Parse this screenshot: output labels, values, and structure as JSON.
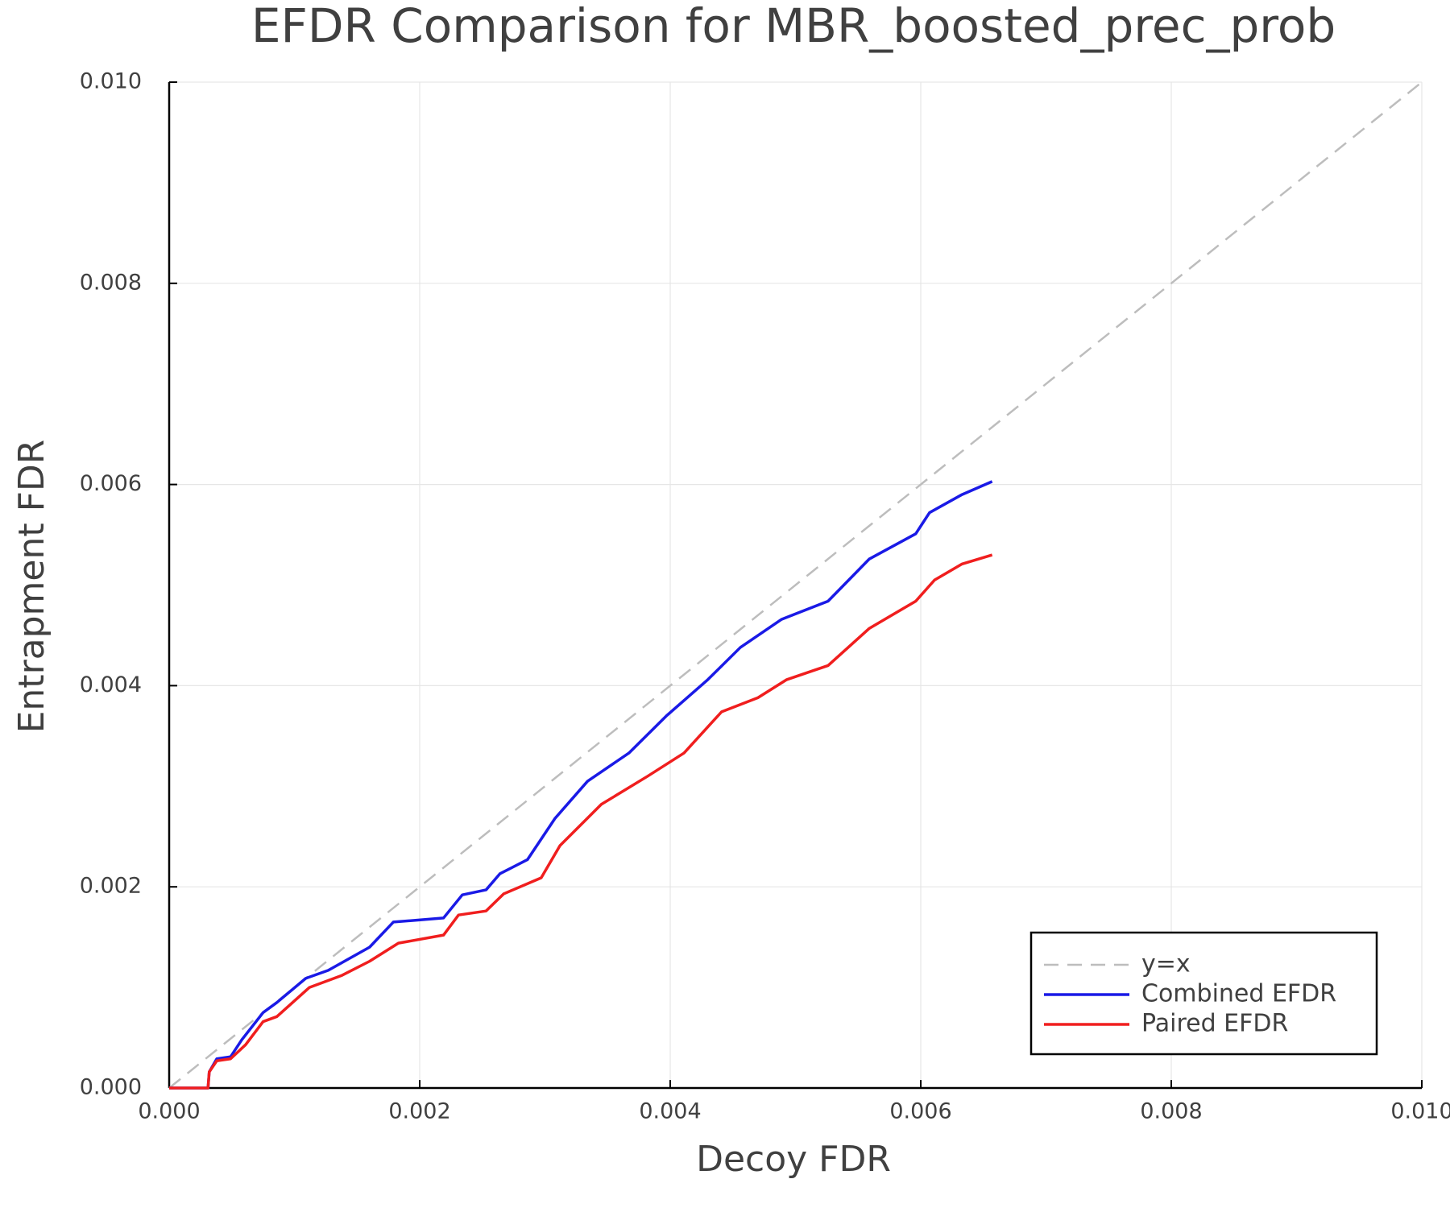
{
  "chart_data": {
    "type": "line",
    "title": "EFDR Comparison for MBR_boosted_prec_prob",
    "x_label": "Decoy FDR",
    "y_label": "Entrapment FDR",
    "xlim": [
      0,
      0.01
    ],
    "ylim": [
      0,
      0.01
    ],
    "xticks": [
      {
        "value": 0,
        "label": "0.000"
      },
      {
        "value": 0.002,
        "label": "0.002"
      },
      {
        "value": 0.004,
        "label": "0.004"
      },
      {
        "value": 0.006,
        "label": "0.006"
      },
      {
        "value": 0.008,
        "label": "0.008"
      },
      {
        "value": 0.01,
        "label": "0.010"
      }
    ],
    "yticks": [
      {
        "value": 0,
        "label": "0.000"
      },
      {
        "value": 0.002,
        "label": "0.002"
      },
      {
        "value": 0.004,
        "label": "0.004"
      },
      {
        "value": 0.006,
        "label": "0.006"
      },
      {
        "value": 0.008,
        "label": "0.008"
      },
      {
        "value": 0.01,
        "label": "0.010"
      }
    ],
    "grid": true,
    "legend": "bottom right",
    "series": [
      {
        "name": "y=x",
        "color": "#bdbdbd",
        "dashed": true,
        "x": [
          0,
          0.01
        ],
        "values": [
          0,
          0.01
        ]
      },
      {
        "name": "Combined EFDR",
        "color": "#1a1ae6",
        "dashed": false,
        "x": [
          0,
          0.00031,
          0.00032,
          0.00038,
          0.00049,
          0.00058,
          0.00075,
          0.00086,
          0.00109,
          0.00127,
          0.0016,
          0.00179,
          0.00219,
          0.00234,
          0.00253,
          0.00264,
          0.00286,
          0.00308,
          0.00334,
          0.00367,
          0.00397,
          0.0043,
          0.00456,
          0.00489,
          0.00526,
          0.00559,
          0.00596,
          0.00607,
          0.00633,
          0.00657
        ],
        "values": [
          0,
          0,
          0.00016,
          0.00029,
          0.00031,
          0.00048,
          0.00075,
          0.00085,
          0.00109,
          0.00117,
          0.0014,
          0.00165,
          0.00169,
          0.00192,
          0.00197,
          0.00213,
          0.00227,
          0.00268,
          0.00305,
          0.00333,
          0.0037,
          0.00406,
          0.00438,
          0.00466,
          0.00484,
          0.00526,
          0.00551,
          0.00572,
          0.0059,
          0.00603
        ]
      },
      {
        "name": "Paired EFDR",
        "color": "#f01e1e",
        "dashed": false,
        "x": [
          0,
          0.00031,
          0.00032,
          0.00038,
          0.00049,
          0.00061,
          0.00075,
          0.00086,
          0.00112,
          0.00138,
          0.0016,
          0.00183,
          0.00219,
          0.00231,
          0.00253,
          0.00267,
          0.00297,
          0.00312,
          0.00345,
          0.00382,
          0.00411,
          0.00441,
          0.0047,
          0.00493,
          0.00526,
          0.00559,
          0.00596,
          0.00611,
          0.00633,
          0.00657
        ],
        "values": [
          0,
          0,
          0.00016,
          0.00027,
          0.00029,
          0.00043,
          0.00066,
          0.00071,
          0.001,
          0.00112,
          0.00126,
          0.00144,
          0.00152,
          0.00172,
          0.00176,
          0.00193,
          0.00209,
          0.00241,
          0.00282,
          0.0031,
          0.00333,
          0.00374,
          0.00388,
          0.00406,
          0.0042,
          0.00457,
          0.00484,
          0.00505,
          0.00521,
          0.0053
        ]
      }
    ]
  }
}
